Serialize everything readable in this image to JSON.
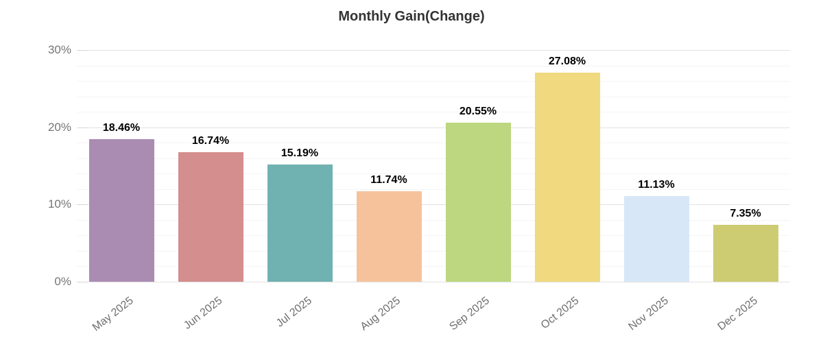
{
  "chart_data": {
    "type": "bar",
    "title": "Monthly Gain(Change)",
    "categories": [
      "May 2025",
      "Jun 2025",
      "Jul 2025",
      "Aug 2025",
      "Sep 2025",
      "Oct 2025",
      "Nov 2025",
      "Dec 2025"
    ],
    "values": [
      18.46,
      16.74,
      15.19,
      11.74,
      20.55,
      27.08,
      11.13,
      7.35
    ],
    "value_labels": [
      "18.46%",
      "16.74%",
      "15.19%",
      "11.74%",
      "20.55%",
      "27.08%",
      "11.13%",
      "7.35%"
    ],
    "bar_colors": [
      "#aa8cb2",
      "#d38e8d",
      "#70b1b1",
      "#f6c29b",
      "#bcd77f",
      "#f0d97e",
      "#d7e7f7",
      "#cdcc73"
    ],
    "xlabel": "",
    "ylabel": "",
    "ylim": [
      0,
      30
    ],
    "y_ticks": [
      {
        "label": "0%",
        "value": 0
      },
      {
        "label": "10%",
        "value": 10
      },
      {
        "label": "20%",
        "value": 20
      },
      {
        "label": "30%",
        "value": 30
      }
    ],
    "y_major_step": 10,
    "y_minor_step": 2,
    "grid": true,
    "legend": "none",
    "x_label_rotation_deg": -38
  },
  "colors": {
    "background": "#ffffff",
    "title_text": "#333333",
    "axis_text_y": "#757575",
    "axis_text_x": "#6e6e6e",
    "value_text": "#000000",
    "major_grid": "#e2e2e2",
    "minor_grid": "#f4f4f4",
    "tick": "#d5d5d5"
  }
}
